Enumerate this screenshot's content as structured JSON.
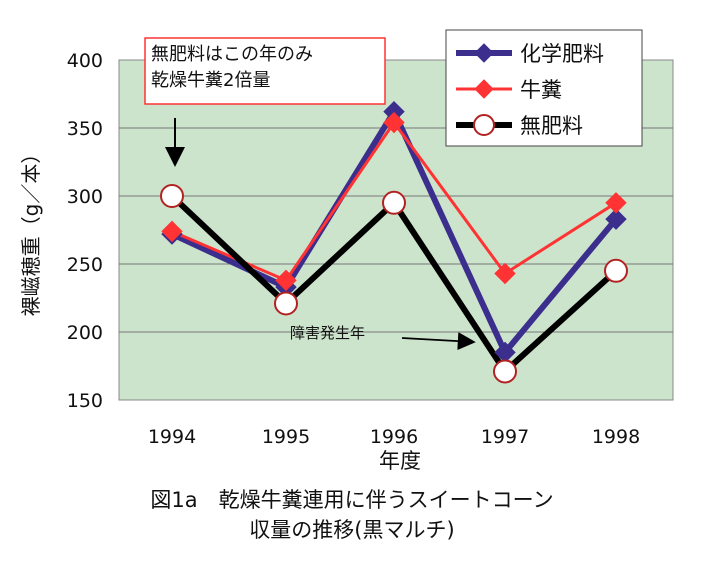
{
  "chart_data": {
    "type": "line",
    "categories": [
      "1994",
      "1995",
      "1996",
      "1997",
      "1998"
    ],
    "series": [
      {
        "name": "化学肥料",
        "values": [
          272,
          233,
          362,
          185,
          283
        ],
        "color": "#3b2e8c",
        "marker": "diamond"
      },
      {
        "name": "牛糞",
        "values": [
          274,
          238,
          354,
          243,
          295
        ],
        "color": "#ff3333",
        "marker": "diamond"
      },
      {
        "name": "無肥料",
        "values": [
          300,
          221,
          295,
          171,
          245
        ],
        "color": "#000000",
        "marker": "circle"
      }
    ],
    "xlabel": "年度",
    "ylabel": "裸嵫穂重（g／本）",
    "ylim": [
      150,
      400
    ],
    "yticks": [
      "400",
      "350",
      "300",
      "250",
      "200",
      "150"
    ],
    "grid": true,
    "plot_background": "#cce4cc",
    "legend_position": "top-right",
    "annotations": {
      "box_line1": "無肥料はこの年のみ",
      "box_line2": "乾燥牛糞2倍量",
      "disaster": "障害発生年"
    }
  },
  "caption": {
    "line1": "図1a　乾燥牛糞連用に伴うスイートコーン",
    "line2": "収量の推移(黒マルチ)"
  }
}
